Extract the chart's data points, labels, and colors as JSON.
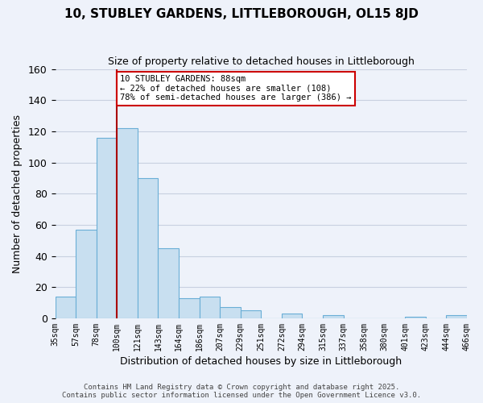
{
  "title": "10, STUBLEY GARDENS, LITTLEBOROUGH, OL15 8JD",
  "subtitle": "Size of property relative to detached houses in Littleborough",
  "xlabel": "Distribution of detached houses by size in Littleborough",
  "ylabel": "Number of detached properties",
  "bar_labels": [
    "35sqm",
    "57sqm",
    "78sqm",
    "100sqm",
    "121sqm",
    "143sqm",
    "164sqm",
    "186sqm",
    "207sqm",
    "229sqm",
    "251sqm",
    "272sqm",
    "294sqm",
    "315sqm",
    "337sqm",
    "358sqm",
    "380sqm",
    "401sqm",
    "423sqm",
    "444sqm",
    "466sqm"
  ],
  "bar_values": [
    14,
    57,
    116,
    122,
    90,
    45,
    13,
    14,
    7,
    5,
    0,
    3,
    0,
    2,
    0,
    0,
    0,
    1,
    0,
    2
  ],
  "bar_color": "#c8dff0",
  "bar_edge_color": "#6aaed6",
  "grid_color": "#c8d0e0",
  "background_color": "#eef2fa",
  "vline_color": "#aa0000",
  "annotation_line1": "10 STUBLEY GARDENS: 88sqm",
  "annotation_line2": "← 22% of detached houses are smaller (108)",
  "annotation_line3": "78% of semi-detached houses are larger (386) →",
  "annotation_box_color": "#ffffff",
  "annotation_box_edge_color": "#cc0000",
  "ylim": [
    0,
    160
  ],
  "yticks": [
    0,
    20,
    40,
    60,
    80,
    100,
    120,
    140,
    160
  ],
  "footnote": "Contains HM Land Registry data © Crown copyright and database right 2025.\nContains public sector information licensed under the Open Government Licence v3.0.",
  "figsize": [
    6.0,
    5.0
  ],
  "dpi": 100
}
